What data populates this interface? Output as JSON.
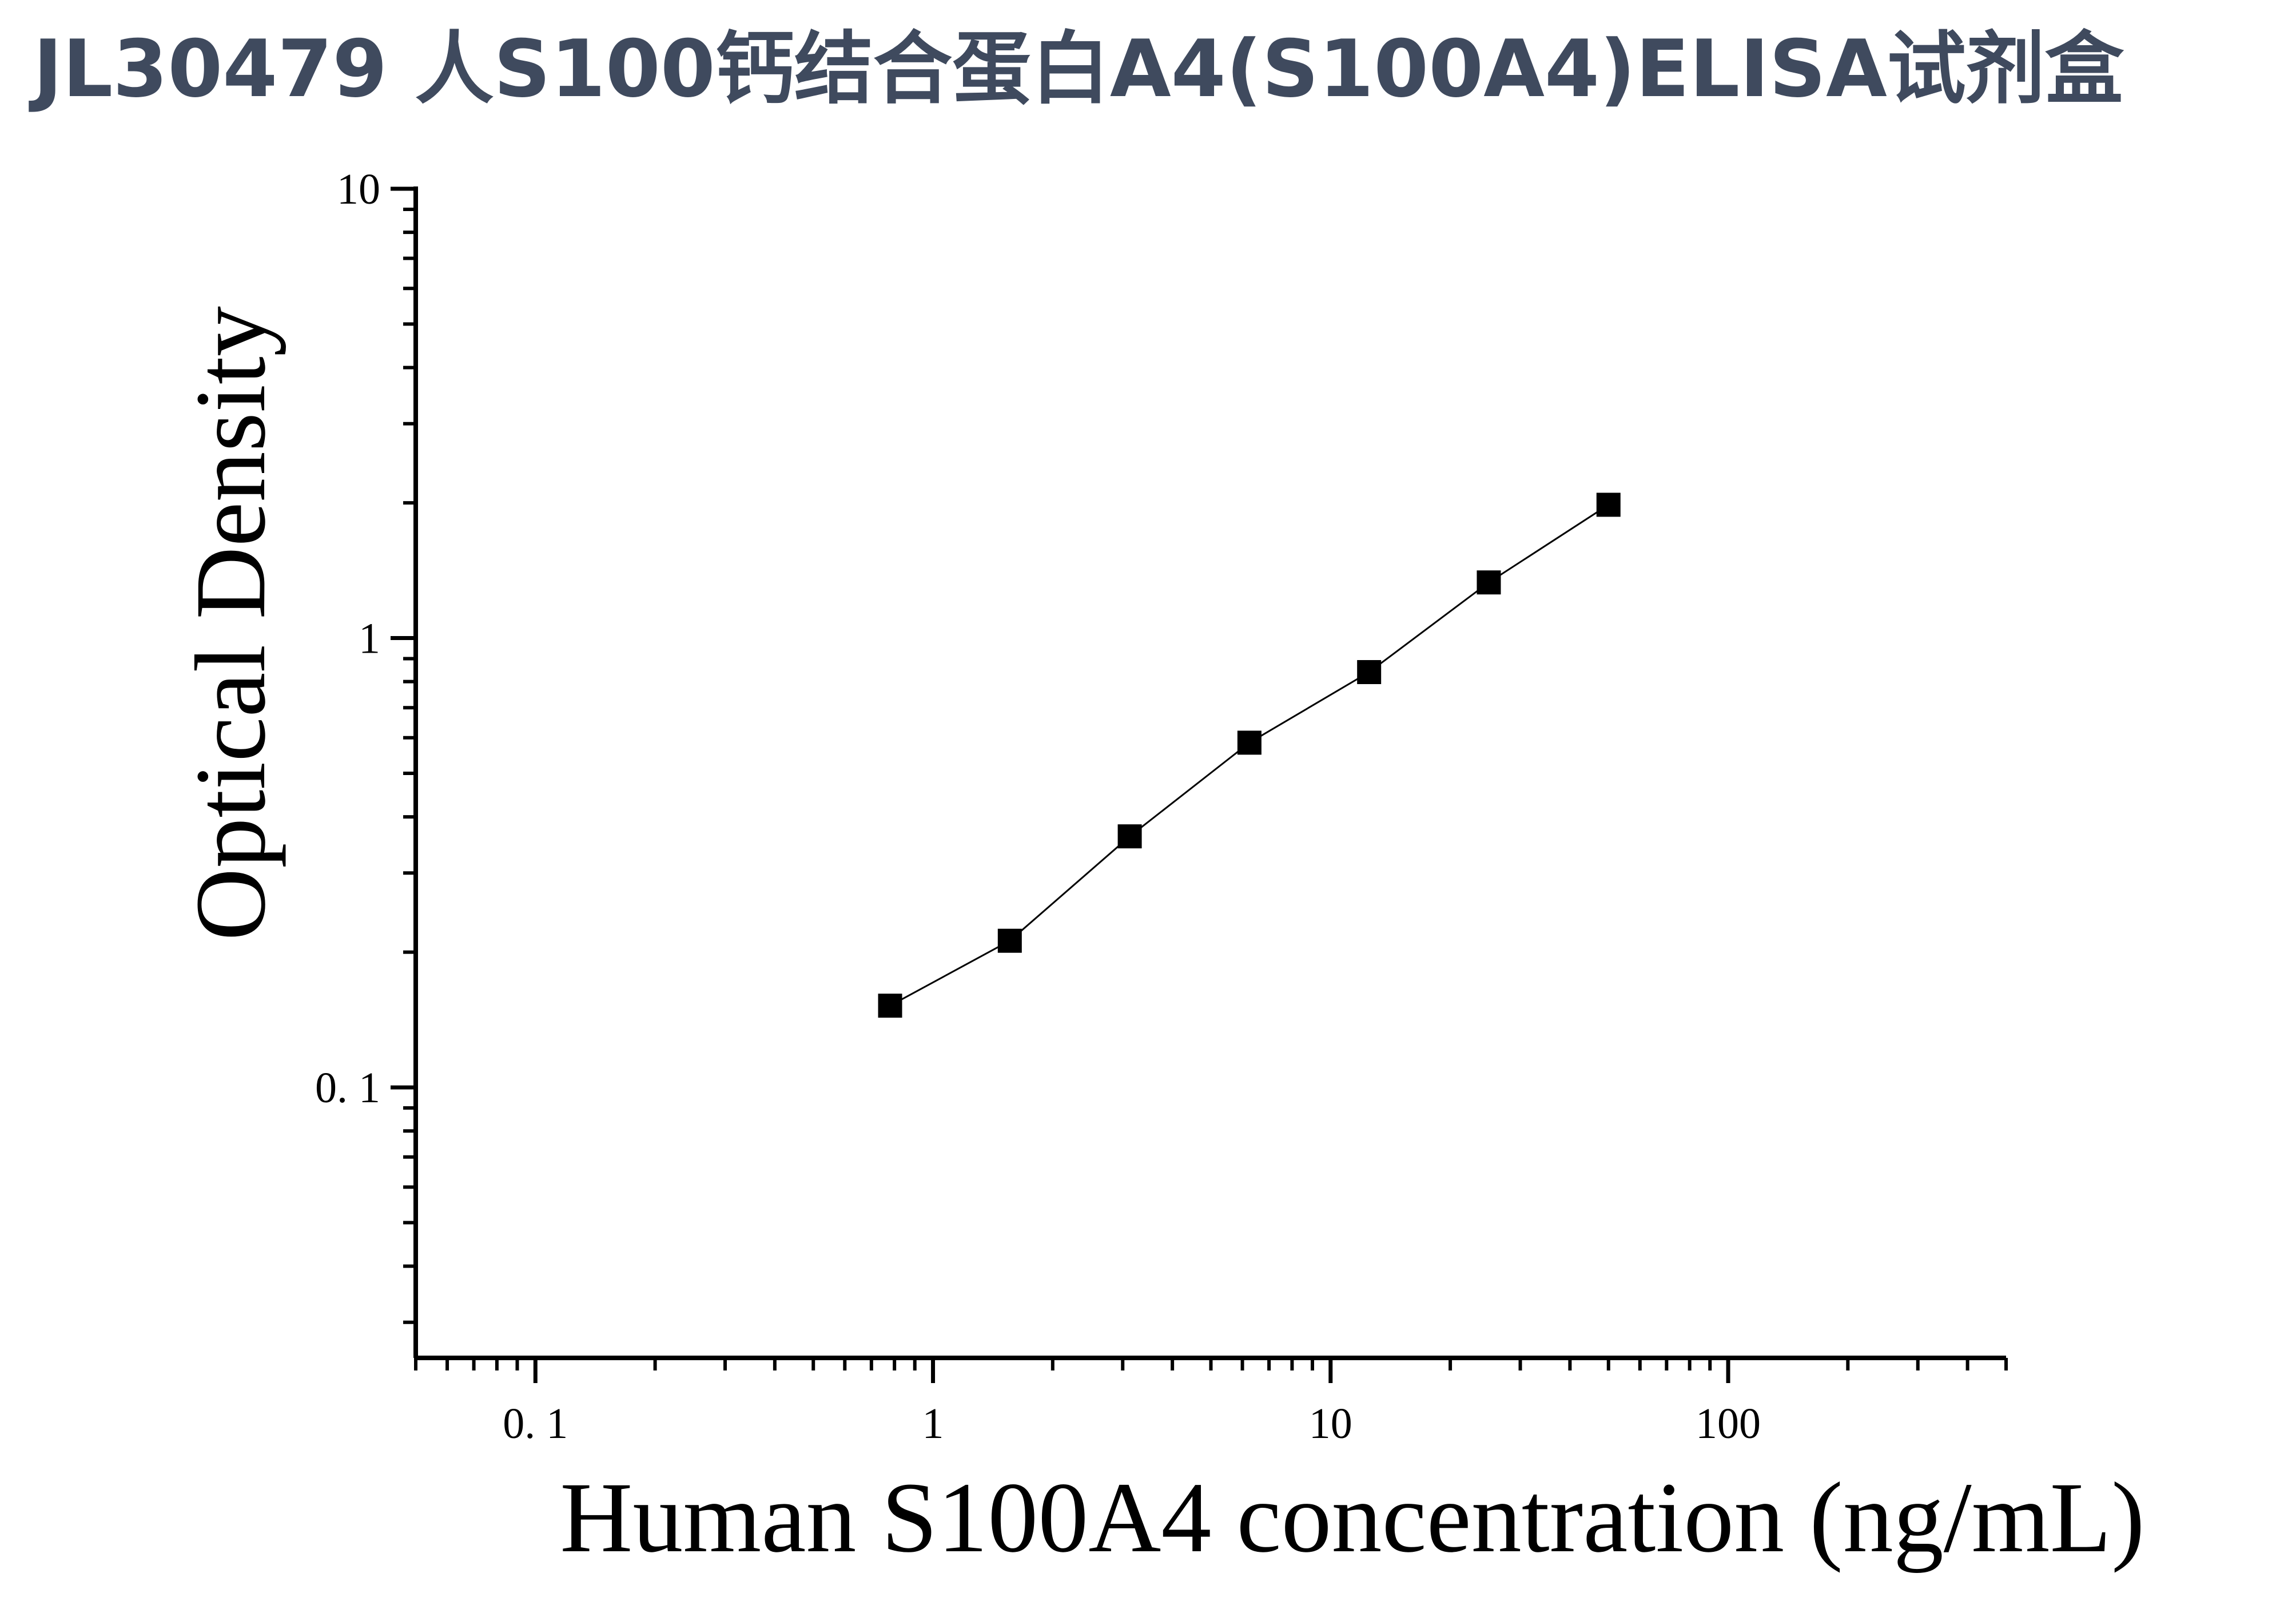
{
  "title": {
    "text": "JL30479 人S100钙结合蛋白A4(S100A4)ELISA试剂盒",
    "color": "#3f4a5e"
  },
  "chart_data": {
    "type": "line",
    "title": "",
    "xlabel": "Human S100A4 concentration (ng/mL)",
    "ylabel": "Optical Density",
    "xscale": "log",
    "yscale": "log",
    "xlim": [
      0.05,
      500
    ],
    "ylim": [
      0.025,
      10
    ],
    "xticks": [
      {
        "value": 0.1,
        "label": "0. 1"
      },
      {
        "value": 1,
        "label": "1"
      },
      {
        "value": 10,
        "label": "10"
      },
      {
        "value": 100,
        "label": "100"
      }
    ],
    "yticks": [
      {
        "value": 0.1,
        "label": "0. 1"
      },
      {
        "value": 1,
        "label": "1"
      },
      {
        "value": 10,
        "label": "10"
      }
    ],
    "grid": false,
    "legend": "none",
    "series": [
      {
        "marker": "square",
        "color": "#000000",
        "x": [
          0.78,
          1.56,
          3.125,
          6.25,
          12.5,
          25,
          50
        ],
        "y": [
          0.152,
          0.212,
          0.362,
          0.585,
          0.84,
          1.33,
          1.98
        ]
      }
    ]
  }
}
